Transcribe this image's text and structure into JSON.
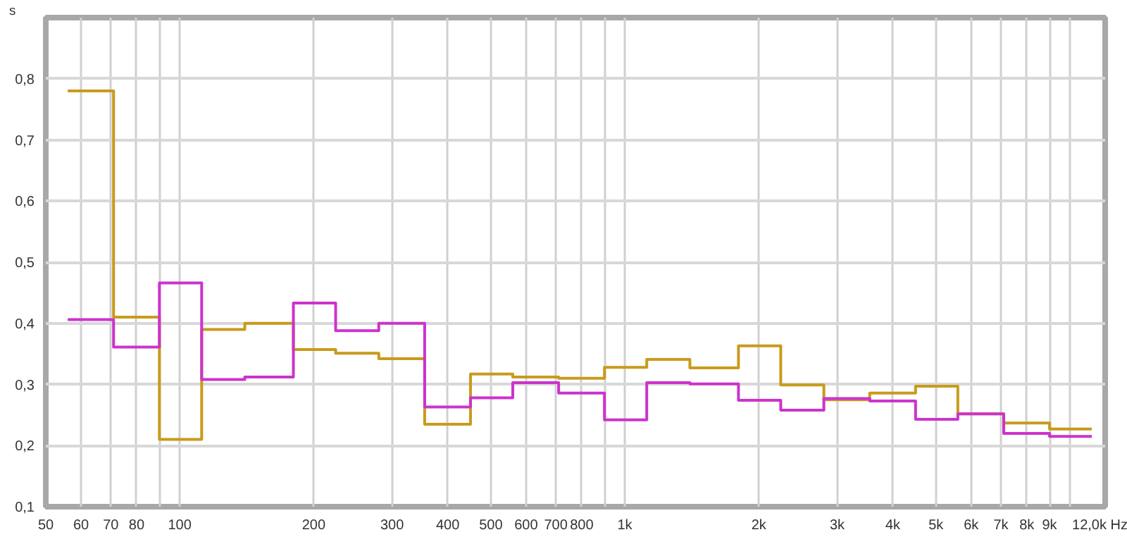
{
  "chart_data": {
    "type": "step",
    "ylabel": "s",
    "log": "x",
    "grid": true,
    "x": [
      56,
      71,
      90,
      112,
      140,
      180,
      224,
      280,
      355,
      450,
      560,
      710,
      900,
      1120,
      1400,
      1800,
      2240,
      2800,
      3550,
      4500,
      5600,
      7100,
      9000,
      11200
    ],
    "series": [
      {
        "color": "#c89b1c",
        "values": [
          0.78,
          0.41,
          0.21,
          0.39,
          0.4,
          0.357,
          0.351,
          0.342,
          0.235,
          0.317,
          0.312,
          0.31,
          0.328,
          0.341,
          0.327,
          0.363,
          0.299,
          0.275,
          0.286,
          0.297,
          0.252,
          0.237,
          0.227,
          0.227
        ]
      },
      {
        "color": "#cc33cc",
        "values": [
          0.406,
          0.361,
          0.466,
          0.308,
          0.312,
          0.433,
          0.388,
          0.4,
          0.263,
          0.278,
          0.303,
          0.286,
          0.242,
          0.303,
          0.301,
          0.274,
          0.258,
          0.277,
          0.273,
          0.243,
          0.252,
          0.22,
          0.215,
          0.215
        ]
      }
    ],
    "xlim": [
      50,
      12000
    ],
    "xticks": [
      50,
      60,
      70,
      80,
      {
        "value": 90,
        "label": null
      },
      100,
      200,
      300,
      400,
      500,
      600,
      700,
      800,
      {
        "value": 900,
        "label": null
      },
      {
        "value": 1000,
        "label": "1k"
      },
      {
        "value": 2000,
        "label": "2k"
      },
      {
        "value": 3000,
        "label": "3k"
      },
      {
        "value": 4000,
        "label": "4k"
      },
      {
        "value": 5000,
        "label": "5k"
      },
      {
        "value": 6000,
        "label": "6k"
      },
      {
        "value": 7000,
        "label": "7k"
      },
      {
        "value": 8000,
        "label": "8k"
      },
      {
        "value": 9000,
        "label": "9k"
      },
      {
        "value": 10000,
        "label": null
      },
      {
        "value": 12000,
        "label": "12,0k Hz"
      }
    ],
    "ylim": [
      0.1,
      0.9
    ],
    "yticks": [
      {
        "value": 0.1,
        "label": "0,1"
      },
      {
        "value": 0.2,
        "label": "0,2"
      },
      {
        "value": 0.3,
        "label": "0,3"
      },
      {
        "value": 0.4,
        "label": "0,4"
      },
      {
        "value": 0.5,
        "label": "0,5"
      },
      {
        "value": 0.6,
        "label": "0,6"
      },
      {
        "value": 0.7,
        "label": "0,7"
      },
      {
        "value": 0.8,
        "label": "0,8"
      }
    ]
  }
}
